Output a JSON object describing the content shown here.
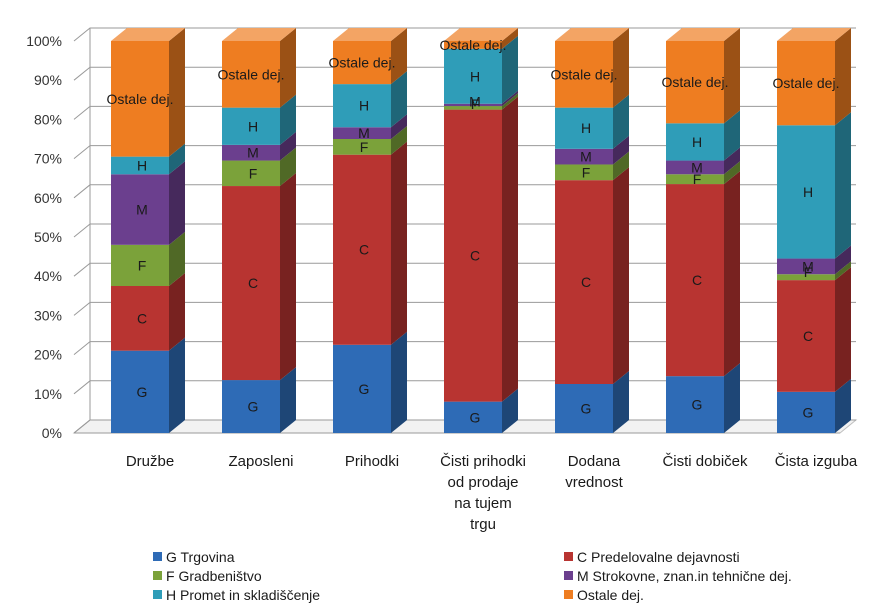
{
  "chart_data": {
    "type": "bar",
    "stacked": "100%",
    "perspective": "3d",
    "categories": [
      [
        "Družbe"
      ],
      [
        "Zaposleni"
      ],
      [
        "Prihodki"
      ],
      [
        "Čisti prihodki",
        "od prodaje",
        "na tujem",
        "trgu"
      ],
      [
        "Dodana",
        "vrednost"
      ],
      [
        "Čisti dobiček"
      ],
      [
        "Čista izguba"
      ]
    ],
    "y_tick_labels": [
      "0%",
      "10%",
      "20%",
      "30%",
      "40%",
      "50%",
      "60%",
      "70%",
      "80%",
      "90%",
      "100%"
    ],
    "ylim": [
      0,
      100
    ],
    "grid": true,
    "legend_position": "bottom",
    "series": [
      {
        "name": "G Trgovina",
        "short": "G",
        "color": "#2e6bb6",
        "values": [
          21,
          13.5,
          22.5,
          8,
          12.5,
          14.5,
          10.5
        ]
      },
      {
        "name": "C Predelovalne dejavnosti",
        "short": "C",
        "color": "#b83431",
        "values": [
          16.5,
          49.5,
          48.5,
          74.5,
          52,
          49,
          28.5
        ]
      },
      {
        "name": "F Gradbeništvo",
        "short": "F",
        "color": "#7ba23a",
        "values": [
          10.5,
          6.5,
          4,
          0.9,
          4,
          2.5,
          1.5
        ]
      },
      {
        "name": "M Strokovne, znan.in tehnične dej.",
        "short": "M",
        "color": "#6b3f8e",
        "values": [
          18,
          4,
          3,
          0.6,
          4,
          3.5,
          4
        ]
      },
      {
        "name": "H Promet in skladiščenje",
        "short": "H",
        "color": "#2f9db8",
        "values": [
          4.5,
          9.5,
          11,
          14,
          10.5,
          9.5,
          34
        ]
      },
      {
        "name": "Ostale dej.",
        "short": "Ostale dej.",
        "color": "#ee7d21",
        "values": [
          29.5,
          17,
          11,
          2,
          17,
          21,
          21.5
        ]
      }
    ]
  }
}
